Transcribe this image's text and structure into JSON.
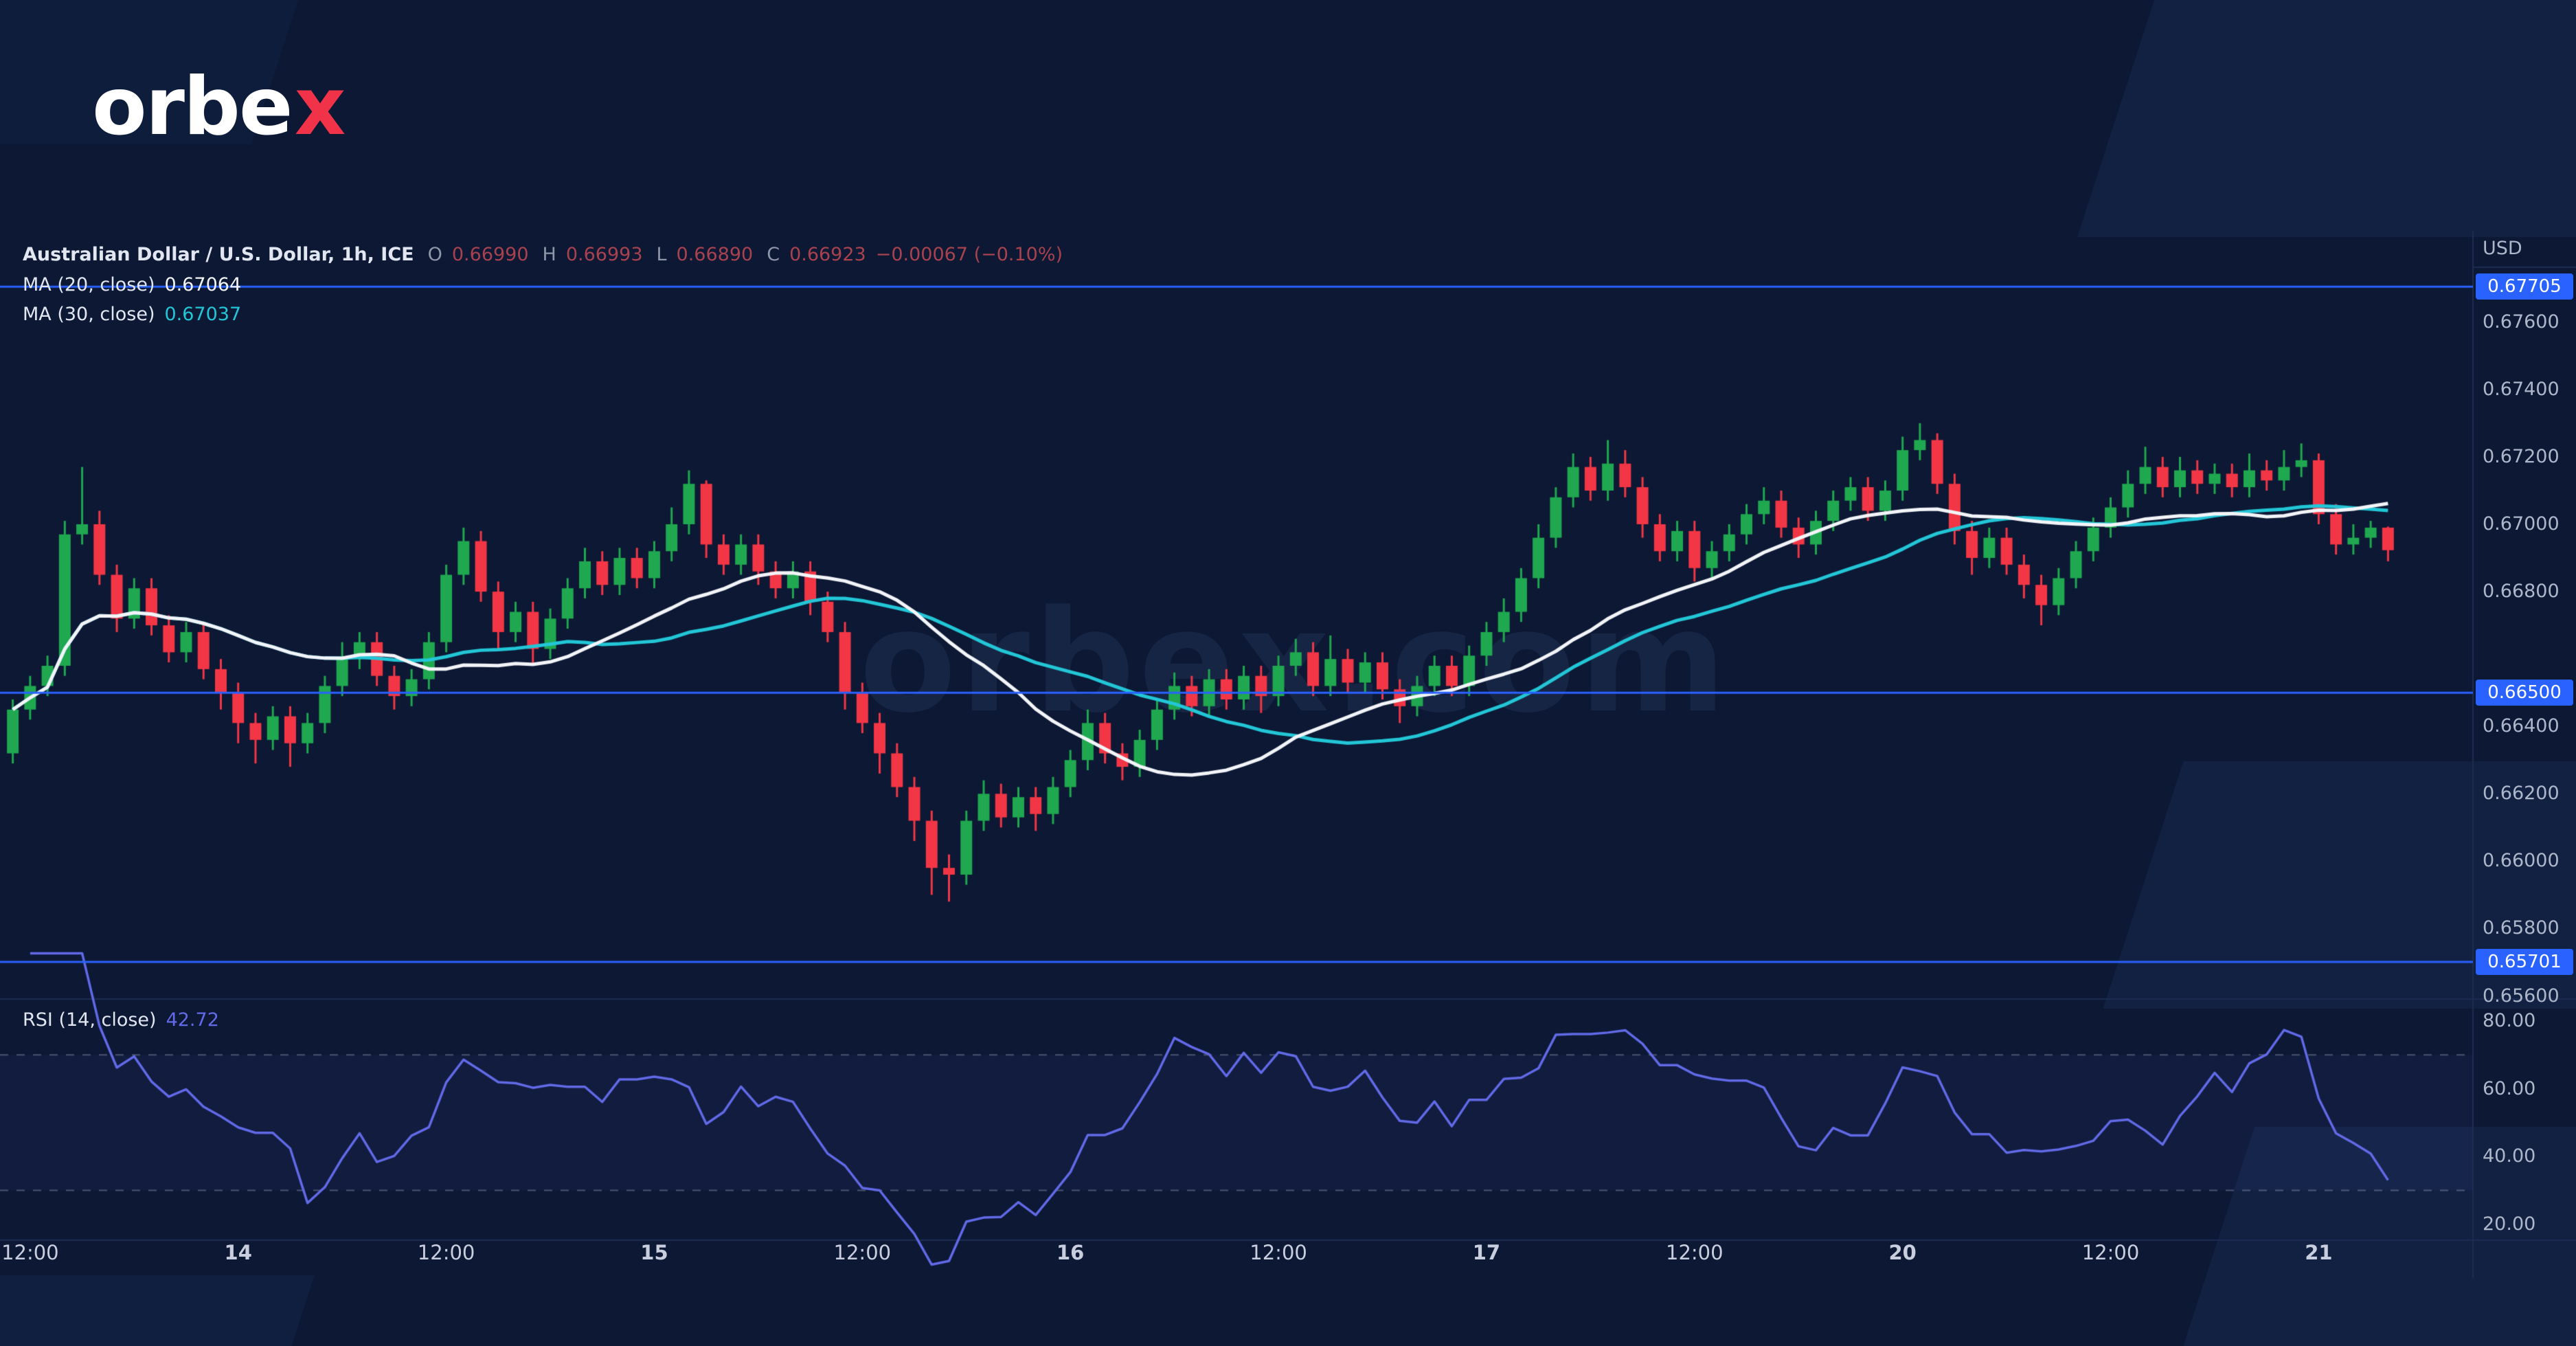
{
  "logo": {
    "text_main": "orbe",
    "text_x": "x"
  },
  "watermark": "orbex.com",
  "legend": {
    "symbol": "Australian Dollar / U.S. Dollar, 1h, ICE",
    "o_label": "O",
    "o": "0.66990",
    "h_label": "H",
    "h": "0.66993",
    "l_label": "L",
    "l": "0.66890",
    "c_label": "C",
    "c": "0.66923",
    "change": "−0.00067 (−0.10%)",
    "ma20_label": "MA (20, close)",
    "ma20_value": "0.67064",
    "ma30_label": "MA (30, close)",
    "ma30_value": "0.67037",
    "rsi_label": "RSI (14, close)",
    "rsi_value": "42.72"
  },
  "axis": {
    "currency": "USD"
  },
  "colors": {
    "background": "#0c1834",
    "shape": "#17294f",
    "up": "#1fa84f",
    "down": "#f23645",
    "ma20": "#f2f4f8",
    "ma30": "#22c6d6",
    "level": "#2962ff",
    "badge_text": "#ffffff",
    "rsi": "#626ae8",
    "rsi_band": "rgba(98,106,232,0.06)",
    "axis_text": "#aeb6ca",
    "time_text": "#c9cede",
    "legend_text": "#e2e6f0",
    "ohlc_label": "#8f96a8",
    "ohlc_value": "#a8424e",
    "separator": "#1d2c52",
    "dashed": "rgba(150,158,185,0.45)",
    "watermark": "rgba(130,160,230,0.10)",
    "logo_text": "#ffffff",
    "logo_x": "#f03349"
  },
  "chart_data": {
    "type": "candlestick",
    "title": "Australian Dollar / U.S. Dollar, 1h, ICE",
    "symbol": "AUD/USD",
    "timeframe": "1h",
    "exchange": "ICE",
    "legend_position": "top-left",
    "grid": false,
    "price_axis": {
      "min": 0.656,
      "max": 0.6785,
      "ticks": [
        {
          "price": 0.676,
          "label": "0.67600"
        },
        {
          "price": 0.674,
          "label": "0.67400"
        },
        {
          "price": 0.672,
          "label": "0.67200"
        },
        {
          "price": 0.67,
          "label": "0.67000"
        },
        {
          "price": 0.668,
          "label": "0.66800"
        },
        {
          "price": 0.664,
          "label": "0.66400"
        },
        {
          "price": 0.662,
          "label": "0.66200"
        },
        {
          "price": 0.66,
          "label": "0.66000"
        },
        {
          "price": 0.658,
          "label": "0.65800"
        },
        {
          "price": 0.656,
          "label": "0.65600"
        }
      ],
      "levels": [
        {
          "price": 0.67705,
          "label": "0.67705"
        },
        {
          "price": 0.665,
          "label": "0.66500"
        },
        {
          "price": 0.65701,
          "label": "0.65701"
        }
      ]
    },
    "overlays": [
      {
        "name": "MA 20",
        "type": "sma",
        "period": 20,
        "last": 0.67064,
        "color_key": "ma20"
      },
      {
        "name": "MA 30",
        "type": "sma",
        "period": 30,
        "last": 0.67037,
        "color_key": "ma30"
      }
    ],
    "rsi": {
      "period": 14,
      "last": 42.72,
      "bands": [
        70,
        30
      ],
      "ticks": [
        80,
        60,
        40,
        20
      ]
    },
    "time_ticks": [
      {
        "i": 1,
        "label": "12:00"
      },
      {
        "i": 13,
        "label": "14"
      },
      {
        "i": 25,
        "label": "12:00"
      },
      {
        "i": 37,
        "label": "15"
      },
      {
        "i": 49,
        "label": "12:00"
      },
      {
        "i": 61,
        "label": "16"
      },
      {
        "i": 73,
        "label": "12:00"
      },
      {
        "i": 85,
        "label": "17"
      },
      {
        "i": 97,
        "label": "12:00"
      },
      {
        "i": 109,
        "label": "20"
      },
      {
        "i": 121,
        "label": "12:00"
      },
      {
        "i": 133,
        "label": "21"
      }
    ],
    "candles": [
      [
        0.6632,
        0.6648,
        0.6629,
        0.6645
      ],
      [
        0.6645,
        0.6655,
        0.6642,
        0.6652
      ],
      [
        0.6652,
        0.6661,
        0.6649,
        0.6658
      ],
      [
        0.6658,
        0.6701,
        0.6655,
        0.6697
      ],
      [
        0.6697,
        0.6717,
        0.6694,
        0.67
      ],
      [
        0.67,
        0.6704,
        0.6682,
        0.6685
      ],
      [
        0.6685,
        0.6688,
        0.6668,
        0.6672
      ],
      [
        0.6672,
        0.6684,
        0.6669,
        0.6681
      ],
      [
        0.6681,
        0.6684,
        0.6667,
        0.667
      ],
      [
        0.667,
        0.6673,
        0.6659,
        0.6662
      ],
      [
        0.6662,
        0.6671,
        0.6659,
        0.6668
      ],
      [
        0.6668,
        0.6671,
        0.6654,
        0.6657
      ],
      [
        0.6657,
        0.666,
        0.6645,
        0.665
      ],
      [
        0.665,
        0.6653,
        0.6635,
        0.6641
      ],
      [
        0.6641,
        0.6644,
        0.6629,
        0.6636
      ],
      [
        0.6636,
        0.6646,
        0.6633,
        0.6643
      ],
      [
        0.6643,
        0.6646,
        0.6628,
        0.6635
      ],
      [
        0.6635,
        0.6644,
        0.6632,
        0.6641
      ],
      [
        0.6641,
        0.6655,
        0.6638,
        0.6652
      ],
      [
        0.6652,
        0.6665,
        0.6649,
        0.666
      ],
      [
        0.666,
        0.6668,
        0.6657,
        0.6665
      ],
      [
        0.6665,
        0.6668,
        0.6652,
        0.6655
      ],
      [
        0.6655,
        0.6658,
        0.6645,
        0.6649
      ],
      [
        0.6649,
        0.6657,
        0.6646,
        0.6654
      ],
      [
        0.6654,
        0.6668,
        0.6651,
        0.6665
      ],
      [
        0.6665,
        0.6688,
        0.6662,
        0.6685
      ],
      [
        0.6685,
        0.6699,
        0.6682,
        0.6695
      ],
      [
        0.6695,
        0.6698,
        0.6677,
        0.668
      ],
      [
        0.668,
        0.6683,
        0.6663,
        0.6668
      ],
      [
        0.6668,
        0.6677,
        0.6665,
        0.6674
      ],
      [
        0.6674,
        0.6677,
        0.6658,
        0.6663
      ],
      [
        0.6663,
        0.6675,
        0.666,
        0.6672
      ],
      [
        0.6672,
        0.6684,
        0.6669,
        0.6681
      ],
      [
        0.6681,
        0.6693,
        0.6678,
        0.6689
      ],
      [
        0.6689,
        0.6692,
        0.6679,
        0.6682
      ],
      [
        0.6682,
        0.6693,
        0.6679,
        0.669
      ],
      [
        0.669,
        0.6693,
        0.6681,
        0.6684
      ],
      [
        0.6684,
        0.6695,
        0.6681,
        0.6692
      ],
      [
        0.6692,
        0.6705,
        0.6689,
        0.67
      ],
      [
        0.67,
        0.6716,
        0.6697,
        0.6712
      ],
      [
        0.6712,
        0.6713,
        0.669,
        0.6694
      ],
      [
        0.6694,
        0.6697,
        0.6685,
        0.6688
      ],
      [
        0.6688,
        0.6697,
        0.6685,
        0.6694
      ],
      [
        0.6694,
        0.6697,
        0.6682,
        0.6686
      ],
      [
        0.6686,
        0.6689,
        0.6678,
        0.6681
      ],
      [
        0.6681,
        0.6689,
        0.6678,
        0.6686
      ],
      [
        0.6686,
        0.6689,
        0.6673,
        0.6677
      ],
      [
        0.6677,
        0.668,
        0.6665,
        0.6668
      ],
      [
        0.6668,
        0.6671,
        0.6645,
        0.665
      ],
      [
        0.665,
        0.6653,
        0.6638,
        0.6641
      ],
      [
        0.6641,
        0.6644,
        0.6626,
        0.6632
      ],
      [
        0.6632,
        0.6635,
        0.6619,
        0.6622
      ],
      [
        0.6622,
        0.6625,
        0.6606,
        0.6612
      ],
      [
        0.6612,
        0.6615,
        0.659,
        0.6598
      ],
      [
        0.6598,
        0.6602,
        0.6588,
        0.6596
      ],
      [
        0.6596,
        0.6615,
        0.6593,
        0.6612
      ],
      [
        0.6612,
        0.6624,
        0.6609,
        0.662
      ],
      [
        0.662,
        0.6623,
        0.661,
        0.6613
      ],
      [
        0.6613,
        0.6622,
        0.661,
        0.6619
      ],
      [
        0.6619,
        0.6622,
        0.6609,
        0.6614
      ],
      [
        0.6614,
        0.6625,
        0.6611,
        0.6622
      ],
      [
        0.6622,
        0.6633,
        0.6619,
        0.663
      ],
      [
        0.663,
        0.6645,
        0.6627,
        0.6641
      ],
      [
        0.6641,
        0.6644,
        0.6629,
        0.6632
      ],
      [
        0.6632,
        0.6635,
        0.6624,
        0.6628
      ],
      [
        0.6628,
        0.6639,
        0.6625,
        0.6636
      ],
      [
        0.6636,
        0.6648,
        0.6633,
        0.6645
      ],
      [
        0.6645,
        0.6656,
        0.6642,
        0.6652
      ],
      [
        0.6652,
        0.6655,
        0.6643,
        0.6646
      ],
      [
        0.6646,
        0.6657,
        0.6643,
        0.6654
      ],
      [
        0.6654,
        0.6657,
        0.6645,
        0.6648
      ],
      [
        0.6648,
        0.6658,
        0.6645,
        0.6655
      ],
      [
        0.6655,
        0.6658,
        0.6644,
        0.6649
      ],
      [
        0.6649,
        0.6661,
        0.6646,
        0.6658
      ],
      [
        0.6658,
        0.6666,
        0.6655,
        0.6662
      ],
      [
        0.6662,
        0.6665,
        0.6649,
        0.6652
      ],
      [
        0.6652,
        0.6667,
        0.6649,
        0.666
      ],
      [
        0.666,
        0.6663,
        0.665,
        0.6653
      ],
      [
        0.6653,
        0.6662,
        0.665,
        0.6659
      ],
      [
        0.6659,
        0.6662,
        0.6648,
        0.6651
      ],
      [
        0.6651,
        0.6654,
        0.6641,
        0.6646
      ],
      [
        0.6646,
        0.6655,
        0.6643,
        0.6652
      ],
      [
        0.6652,
        0.6661,
        0.6649,
        0.6658
      ],
      [
        0.6658,
        0.6661,
        0.6649,
        0.6652
      ],
      [
        0.6652,
        0.6664,
        0.6649,
        0.6661
      ],
      [
        0.6661,
        0.6671,
        0.6658,
        0.6668
      ],
      [
        0.6668,
        0.6678,
        0.6665,
        0.6674
      ],
      [
        0.6674,
        0.6687,
        0.6671,
        0.6684
      ],
      [
        0.6684,
        0.67,
        0.6681,
        0.6696
      ],
      [
        0.6696,
        0.6711,
        0.6693,
        0.6708
      ],
      [
        0.6708,
        0.6721,
        0.6705,
        0.6717
      ],
      [
        0.6717,
        0.672,
        0.6707,
        0.671
      ],
      [
        0.671,
        0.6725,
        0.6707,
        0.6718
      ],
      [
        0.6718,
        0.6722,
        0.6708,
        0.6711
      ],
      [
        0.6711,
        0.6714,
        0.6696,
        0.67
      ],
      [
        0.67,
        0.6703,
        0.6689,
        0.6692
      ],
      [
        0.6692,
        0.6701,
        0.6689,
        0.6698
      ],
      [
        0.6698,
        0.6701,
        0.6683,
        0.6687
      ],
      [
        0.6687,
        0.6695,
        0.6684,
        0.6692
      ],
      [
        0.6692,
        0.67,
        0.6689,
        0.6697
      ],
      [
        0.6697,
        0.6706,
        0.6694,
        0.6703
      ],
      [
        0.6703,
        0.6711,
        0.67,
        0.6707
      ],
      [
        0.6707,
        0.671,
        0.6696,
        0.6699
      ],
      [
        0.6699,
        0.6702,
        0.669,
        0.6694
      ],
      [
        0.6694,
        0.6704,
        0.6691,
        0.6701
      ],
      [
        0.6701,
        0.671,
        0.6698,
        0.6707
      ],
      [
        0.6707,
        0.6714,
        0.6704,
        0.6711
      ],
      [
        0.6711,
        0.6714,
        0.6701,
        0.6704
      ],
      [
        0.6704,
        0.6713,
        0.6701,
        0.671
      ],
      [
        0.671,
        0.6726,
        0.6707,
        0.6722
      ],
      [
        0.6722,
        0.673,
        0.6719,
        0.6725
      ],
      [
        0.6725,
        0.6727,
        0.6709,
        0.6712
      ],
      [
        0.6712,
        0.6715,
        0.6694,
        0.6698
      ],
      [
        0.6698,
        0.6701,
        0.6685,
        0.669
      ],
      [
        0.669,
        0.6699,
        0.6687,
        0.6696
      ],
      [
        0.6696,
        0.6699,
        0.6685,
        0.6688
      ],
      [
        0.6688,
        0.6691,
        0.6678,
        0.6682
      ],
      [
        0.6682,
        0.6685,
        0.667,
        0.6676
      ],
      [
        0.6676,
        0.6687,
        0.6673,
        0.6684
      ],
      [
        0.6684,
        0.6695,
        0.6681,
        0.6692
      ],
      [
        0.6692,
        0.6702,
        0.6689,
        0.6699
      ],
      [
        0.6699,
        0.6708,
        0.6696,
        0.6705
      ],
      [
        0.6705,
        0.6716,
        0.6702,
        0.6712
      ],
      [
        0.6712,
        0.6723,
        0.6709,
        0.6717
      ],
      [
        0.6717,
        0.672,
        0.6708,
        0.6711
      ],
      [
        0.6711,
        0.672,
        0.6708,
        0.6716
      ],
      [
        0.6716,
        0.6719,
        0.6709,
        0.6712
      ],
      [
        0.6712,
        0.6718,
        0.6709,
        0.6715
      ],
      [
        0.6715,
        0.6718,
        0.6708,
        0.6711
      ],
      [
        0.6711,
        0.6721,
        0.6708,
        0.6716
      ],
      [
        0.6716,
        0.6719,
        0.671,
        0.6713
      ],
      [
        0.6713,
        0.6722,
        0.671,
        0.6717
      ],
      [
        0.6717,
        0.6724,
        0.6714,
        0.6719
      ],
      [
        0.6719,
        0.6721,
        0.67,
        0.6703
      ],
      [
        0.6703,
        0.6706,
        0.6691,
        0.6694
      ],
      [
        0.6694,
        0.67,
        0.6691,
        0.6696
      ],
      [
        0.6696,
        0.6701,
        0.6693,
        0.6699
      ],
      [
        0.6699,
        0.66993,
        0.6689,
        0.66923
      ]
    ]
  }
}
